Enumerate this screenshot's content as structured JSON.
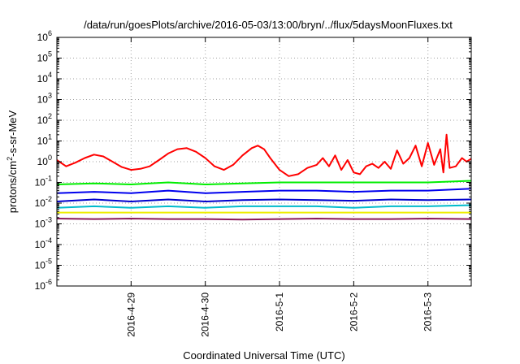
{
  "chart_data": {
    "type": "line",
    "title": "/data/run/goesPlots/archive/2016-05-03/13:00/bryn/../flux/5daysMoonFluxes.txt",
    "xlabel": "Coordinated Universal Time (UTC)",
    "ylabel": {
      "prefix": "protons/cm",
      "superscript": "2",
      "suffix": "-s-sr-MeV"
    },
    "yscale": "log",
    "ylim": [
      1e-06,
      1000000.0
    ],
    "xlim": [
      "2016-04-28T00:00",
      "2016-05-03T14:00"
    ],
    "grid": true,
    "legend": "none",
    "y_tick_values": [
      -6,
      -5,
      -4,
      -3,
      -2,
      -1,
      0,
      1,
      2,
      3,
      4,
      5,
      6
    ],
    "x_ticks": [
      {
        "label": "2016-4-29",
        "time": "2016-04-29T00:00"
      },
      {
        "label": "2016-4-30",
        "time": "2016-04-30T00:00"
      },
      {
        "label": "2016-5-1",
        "time": "2016-05-01T00:00"
      },
      {
        "label": "2016-5-2",
        "time": "2016-05-02T00:00"
      },
      {
        "label": "2016-5-3",
        "time": "2016-05-03T00:00"
      }
    ],
    "series": [
      {
        "color": "#ff0000",
        "points": [
          [
            "2016-04-28T00:00",
            1.2
          ],
          [
            "2016-04-28T03:00",
            0.6
          ],
          [
            "2016-04-28T06:00",
            0.9
          ],
          [
            "2016-04-28T09:00",
            1.5
          ],
          [
            "2016-04-28T12:00",
            2.2
          ],
          [
            "2016-04-28T15:00",
            1.8
          ],
          [
            "2016-04-28T18:00",
            1.0
          ],
          [
            "2016-04-28T21:00",
            0.55
          ],
          [
            "2016-04-29T00:00",
            0.4
          ],
          [
            "2016-04-29T03:00",
            0.45
          ],
          [
            "2016-04-29T06:00",
            0.6
          ],
          [
            "2016-04-29T09:00",
            1.2
          ],
          [
            "2016-04-29T12:00",
            2.5
          ],
          [
            "2016-04-29T15:00",
            4.0
          ],
          [
            "2016-04-29T18:00",
            4.5
          ],
          [
            "2016-04-29T21:00",
            3.0
          ],
          [
            "2016-04-30T00:00",
            1.5
          ],
          [
            "2016-04-30T03:00",
            0.6
          ],
          [
            "2016-04-30T06:00",
            0.4
          ],
          [
            "2016-04-30T09:00",
            0.7
          ],
          [
            "2016-04-30T12:00",
            2.0
          ],
          [
            "2016-04-30T15:00",
            4.5
          ],
          [
            "2016-04-30T17:00",
            6.0
          ],
          [
            "2016-04-30T19:00",
            4.0
          ],
          [
            "2016-04-30T21:00",
            1.5
          ],
          [
            "2016-05-01T00:00",
            0.4
          ],
          [
            "2016-05-01T03:00",
            0.2
          ],
          [
            "2016-05-01T06:00",
            0.25
          ],
          [
            "2016-05-01T09:00",
            0.5
          ],
          [
            "2016-05-01T12:00",
            0.7
          ],
          [
            "2016-05-01T14:00",
            1.5
          ],
          [
            "2016-05-01T16:00",
            0.6
          ],
          [
            "2016-05-01T18:00",
            2.0
          ],
          [
            "2016-05-01T20:00",
            0.4
          ],
          [
            "2016-05-01T22:00",
            1.2
          ],
          [
            "2016-05-02T00:00",
            0.3
          ],
          [
            "2016-05-02T02:00",
            0.25
          ],
          [
            "2016-05-02T04:00",
            0.6
          ],
          [
            "2016-05-02T06:00",
            0.8
          ],
          [
            "2016-05-02T08:00",
            0.5
          ],
          [
            "2016-05-02T10:00",
            1.0
          ],
          [
            "2016-05-02T12:00",
            0.45
          ],
          [
            "2016-05-02T14:00",
            3.5
          ],
          [
            "2016-05-02T16:00",
            0.8
          ],
          [
            "2016-05-02T18:00",
            1.5
          ],
          [
            "2016-05-02T20:00",
            6.0
          ],
          [
            "2016-05-02T22:00",
            0.6
          ],
          [
            "2016-05-03T00:00",
            8.0
          ],
          [
            "2016-05-03T02:00",
            0.7
          ],
          [
            "2016-05-03T04:00",
            4.0
          ],
          [
            "2016-05-03T05:00",
            0.3
          ],
          [
            "2016-05-03T06:00",
            20.0
          ],
          [
            "2016-05-03T07:00",
            0.5
          ],
          [
            "2016-05-03T09:00",
            0.6
          ],
          [
            "2016-05-03T11:00",
            1.5
          ],
          [
            "2016-05-03T12:30",
            1.0
          ],
          [
            "2016-05-03T14:00",
            1.4
          ]
        ]
      },
      {
        "color": "#00ee00",
        "points": [
          [
            "2016-04-28T00:00",
            0.08
          ],
          [
            "2016-04-28T12:00",
            0.09
          ],
          [
            "2016-04-29T00:00",
            0.08
          ],
          [
            "2016-04-29T12:00",
            0.1
          ],
          [
            "2016-04-30T00:00",
            0.08
          ],
          [
            "2016-04-30T12:00",
            0.09
          ],
          [
            "2016-05-01T00:00",
            0.1
          ],
          [
            "2016-05-01T12:00",
            0.1
          ],
          [
            "2016-05-02T00:00",
            0.1
          ],
          [
            "2016-05-02T12:00",
            0.1
          ],
          [
            "2016-05-03T00:00",
            0.1
          ],
          [
            "2016-05-03T14:00",
            0.12
          ]
        ]
      },
      {
        "color": "#0000ee",
        "points": [
          [
            "2016-04-28T00:00",
            0.03
          ],
          [
            "2016-04-28T12:00",
            0.035
          ],
          [
            "2016-04-29T00:00",
            0.03
          ],
          [
            "2016-04-29T12:00",
            0.04
          ],
          [
            "2016-04-30T00:00",
            0.03
          ],
          [
            "2016-04-30T12:00",
            0.035
          ],
          [
            "2016-05-01T00:00",
            0.04
          ],
          [
            "2016-05-01T12:00",
            0.04
          ],
          [
            "2016-05-02T00:00",
            0.035
          ],
          [
            "2016-05-02T12:00",
            0.04
          ],
          [
            "2016-05-03T00:00",
            0.04
          ],
          [
            "2016-05-03T14:00",
            0.05
          ]
        ]
      },
      {
        "color": "#0000cc",
        "points": [
          [
            "2016-04-28T00:00",
            0.012
          ],
          [
            "2016-04-28T12:00",
            0.015
          ],
          [
            "2016-04-29T00:00",
            0.012
          ],
          [
            "2016-04-29T12:00",
            0.015
          ],
          [
            "2016-04-30T00:00",
            0.012
          ],
          [
            "2016-04-30T12:00",
            0.014
          ],
          [
            "2016-05-01T00:00",
            0.015
          ],
          [
            "2016-05-01T12:00",
            0.014
          ],
          [
            "2016-05-02T00:00",
            0.013
          ],
          [
            "2016-05-02T12:00",
            0.015
          ],
          [
            "2016-05-03T00:00",
            0.014
          ],
          [
            "2016-05-03T14:00",
            0.015
          ]
        ]
      },
      {
        "color": "#00bbcc",
        "points": [
          [
            "2016-04-28T00:00",
            0.006
          ],
          [
            "2016-04-28T12:00",
            0.007
          ],
          [
            "2016-04-29T00:00",
            0.006
          ],
          [
            "2016-04-29T12:00",
            0.007
          ],
          [
            "2016-04-30T00:00",
            0.006
          ],
          [
            "2016-04-30T12:00",
            0.007
          ],
          [
            "2016-05-01T00:00",
            0.007
          ],
          [
            "2016-05-01T12:00",
            0.007
          ],
          [
            "2016-05-02T00:00",
            0.006
          ],
          [
            "2016-05-02T12:00",
            0.007
          ],
          [
            "2016-05-03T00:00",
            0.007
          ],
          [
            "2016-05-03T14:00",
            0.008
          ]
        ]
      },
      {
        "color": "#eeee00",
        "points": [
          [
            "2016-04-28T00:00",
            0.0035
          ],
          [
            "2016-04-29T00:00",
            0.0035
          ],
          [
            "2016-04-30T00:00",
            0.0035
          ],
          [
            "2016-05-01T00:00",
            0.0035
          ],
          [
            "2016-05-02T00:00",
            0.0035
          ],
          [
            "2016-05-03T00:00",
            0.0035
          ],
          [
            "2016-05-03T14:00",
            0.0035
          ]
        ]
      },
      {
        "color": "#8b1a5a",
        "points": [
          [
            "2016-04-28T00:00",
            0.0018
          ],
          [
            "2016-04-28T12:00",
            0.0017
          ],
          [
            "2016-04-29T00:00",
            0.0018
          ],
          [
            "2016-04-29T12:00",
            0.0017
          ],
          [
            "2016-04-30T00:00",
            0.0017
          ],
          [
            "2016-04-30T12:00",
            0.0016
          ],
          [
            "2016-05-01T00:00",
            0.0017
          ],
          [
            "2016-05-01T12:00",
            0.0018
          ],
          [
            "2016-05-02T00:00",
            0.0017
          ],
          [
            "2016-05-02T12:00",
            0.0017
          ],
          [
            "2016-05-03T00:00",
            0.0018
          ],
          [
            "2016-05-03T14:00",
            0.0017
          ]
        ]
      }
    ]
  }
}
